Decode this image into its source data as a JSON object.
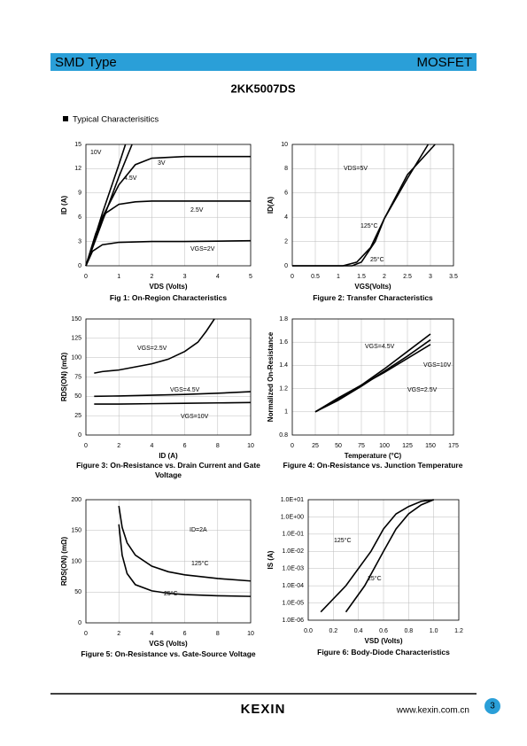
{
  "header": {
    "left": "SMD Type",
    "right": "MOSFET"
  },
  "title": "2KK5007DS",
  "section": "Typical  Characterisitics",
  "chart_data": [
    {
      "type": "line",
      "title": "Fig 1: On-Region Characteristics",
      "xlabel": "VDS (Volts)",
      "ylabel": "ID (A)",
      "xlim": [
        0,
        5
      ],
      "ylim": [
        0,
        15
      ],
      "xticks": [
        0,
        1,
        2,
        3,
        4,
        5
      ],
      "yticks": [
        0,
        3,
        6,
        9,
        12,
        15
      ],
      "grid": true,
      "color": "#000000",
      "series": [
        {
          "name": "VGS=2V",
          "x": [
            0,
            0.2,
            0.5,
            1,
            2,
            3,
            4,
            5
          ],
          "values": [
            0,
            1.8,
            2.6,
            2.9,
            3,
            3,
            3.05,
            3.1
          ]
        },
        {
          "name": "2.5V",
          "x": [
            0,
            0.3,
            0.6,
            1,
            1.5,
            2,
            3,
            4,
            5
          ],
          "values": [
            0,
            4,
            6.5,
            7.6,
            7.9,
            8,
            8,
            8,
            8
          ]
        },
        {
          "name": "3V",
          "x": [
            0,
            0.5,
            1,
            1.5,
            2,
            3,
            4,
            5
          ],
          "values": [
            0,
            6,
            10,
            12.5,
            13.3,
            13.5,
            13.5,
            13.5
          ]
        },
        {
          "name": "4.5V",
          "x": [
            0,
            0.5,
            1,
            1.4
          ],
          "values": [
            0,
            5.5,
            11,
            15
          ]
        },
        {
          "name": "10V",
          "x": [
            0,
            0.5,
            1,
            1.2
          ],
          "values": [
            0,
            6.5,
            12.5,
            15
          ]
        }
      ]
    },
    {
      "type": "line",
      "title": "Figure 2: Transfer Characteristics",
      "xlabel": "VGS(Volts)",
      "ylabel": "ID(A)",
      "xlim": [
        0,
        3.5
      ],
      "ylim": [
        0,
        10
      ],
      "xticks": [
        0,
        0.5,
        1,
        1.5,
        2,
        2.5,
        3,
        3.5
      ],
      "yticks": [
        0,
        2,
        4,
        6,
        8,
        10
      ],
      "grid": true,
      "color": "#000000",
      "annotations": [
        {
          "text": "VDS=5V"
        }
      ],
      "series": [
        {
          "name": "125°C",
          "x": [
            0,
            1.1,
            1.4,
            1.7,
            2,
            2.5,
            2.95
          ],
          "values": [
            0,
            0,
            0.3,
            1.5,
            3.9,
            7.2,
            10
          ]
        },
        {
          "name": "25°C",
          "x": [
            0,
            1.3,
            1.5,
            1.8,
            2,
            2.5,
            3.1
          ],
          "values": [
            0,
            0,
            0.3,
            2,
            3.9,
            7.5,
            10
          ]
        }
      ]
    },
    {
      "type": "line",
      "title": "Figure 3: On-Resistance vs. Drain Current and Gate Voltage",
      "xlabel": "ID (A)",
      "ylabel": "RDS(ON) (mΩ)",
      "xlim": [
        0,
        10
      ],
      "ylim": [
        0,
        150
      ],
      "xticks": [
        0,
        2,
        4,
        6,
        8,
        10
      ],
      "yticks": [
        0,
        25,
        50,
        75,
        100,
        125,
        150
      ],
      "grid": true,
      "color": "#000000",
      "series": [
        {
          "name": "VGS=2.5V",
          "x": [
            0.5,
            1,
            2,
            3,
            4,
            5,
            6,
            6.8,
            7.3,
            7.8
          ],
          "values": [
            80,
            82,
            84,
            88,
            92,
            98,
            108,
            120,
            134,
            150
          ]
        },
        {
          "name": "VGS=4.5V",
          "x": [
            0.5,
            2,
            4,
            6,
            8,
            10
          ],
          "values": [
            50,
            50.5,
            51.5,
            52.5,
            54,
            56
          ]
        },
        {
          "name": "VGS=10V",
          "x": [
            0.5,
            2,
            4,
            6,
            8,
            10
          ],
          "values": [
            40,
            40,
            40.5,
            41,
            41.5,
            42
          ]
        }
      ]
    },
    {
      "type": "line",
      "title": "Figure 4: On-Resistance vs. Junction Temperature",
      "xlabel": "Temperature (°C)",
      "ylabel": "Normalized On-Resistance",
      "xlim": [
        0,
        175
      ],
      "ylim": [
        0.8,
        1.8
      ],
      "xticks": [
        0,
        25,
        50,
        75,
        100,
        125,
        150,
        175
      ],
      "yticks": [
        0.8,
        1,
        1.2,
        1.4,
        1.6,
        1.8
      ],
      "grid": true,
      "color": "#000000",
      "series": [
        {
          "name": "VGS=4.5V",
          "x": [
            25,
            50,
            75,
            100,
            125,
            150
          ],
          "values": [
            1,
            1.11,
            1.23,
            1.37,
            1.52,
            1.67
          ]
        },
        {
          "name": "VGS=10V",
          "x": [
            25,
            50,
            75,
            100,
            125,
            150
          ],
          "values": [
            1,
            1.1,
            1.22,
            1.35,
            1.48,
            1.62
          ]
        },
        {
          "name": "VGS=2.5V",
          "x": [
            25,
            50,
            75,
            100,
            125,
            150
          ],
          "values": [
            1,
            1.12,
            1.23,
            1.34,
            1.46,
            1.58
          ]
        }
      ]
    },
    {
      "type": "line",
      "title": "Figure 5: On-Resistance vs. Gate-Source Voltage",
      "xlabel": "VGS (Volts)",
      "ylabel": "RDS(ON) (mΩ)",
      "xlim": [
        0,
        10
      ],
      "ylim": [
        0,
        200
      ],
      "xticks": [
        0,
        2,
        4,
        6,
        8,
        10
      ],
      "yticks": [
        0,
        50,
        100,
        150,
        200
      ],
      "grid": true,
      "color": "#000000",
      "annotations": [
        {
          "text": "ID=2A"
        }
      ],
      "series": [
        {
          "name": "125°C",
          "x": [
            2,
            2.2,
            2.5,
            3,
            4,
            5,
            6,
            8,
            10
          ],
          "values": [
            190,
            155,
            130,
            110,
            92,
            83,
            78,
            72,
            68
          ]
        },
        {
          "name": "25°C",
          "x": [
            2,
            2.2,
            2.5,
            3,
            4,
            5,
            6,
            8,
            10
          ],
          "values": [
            160,
            110,
            80,
            62,
            52,
            48,
            46,
            44,
            43
          ]
        }
      ]
    },
    {
      "type": "line",
      "title": "Figure 6: Body-Diode Characteristics",
      "xlabel": "VSD (Volts)",
      "ylabel": "IS (A)",
      "xlim": [
        0,
        1.2
      ],
      "ylim": [
        1e-06,
        10
      ],
      "ylog": true,
      "xticks": [
        {
          "value": 0,
          "label": "0.0"
        },
        0.2,
        0.4,
        0.6,
        0.8,
        {
          "value": 1,
          "label": "1.0"
        },
        1.2
      ],
      "yticks": [
        {
          "value": 1e-06,
          "label": "1.0E-06"
        },
        {
          "value": 1e-05,
          "label": "1.0E-05"
        },
        {
          "value": 0.0001,
          "label": "1.0E-04"
        },
        {
          "value": 0.001,
          "label": "1.0E-03"
        },
        {
          "value": 0.01,
          "label": "1.0E-02"
        },
        {
          "value": 0.1,
          "label": "1.0E-01"
        },
        {
          "value": 1,
          "label": "1.0E+00"
        },
        {
          "value": 10,
          "label": "1.0E+01"
        }
      ],
      "grid": true,
      "color": "#000000",
      "series": [
        {
          "name": "125°C",
          "x": [
            0.1,
            0.3,
            0.5,
            0.6,
            0.7,
            0.8,
            0.9,
            1.0
          ],
          "values": [
            3e-06,
            0.0001,
            0.01,
            0.2,
            1.5,
            4,
            8,
            10
          ]
        },
        {
          "name": "25°C",
          "x": [
            0.3,
            0.45,
            0.6,
            0.7,
            0.8,
            0.9,
            1.0
          ],
          "values": [
            3e-06,
            0.0001,
            0.01,
            0.2,
            1.5,
            5,
            10
          ]
        }
      ]
    }
  ],
  "footer": {
    "brand": "KEXIN",
    "url": "www.kexin.com.cn",
    "page": "3"
  }
}
